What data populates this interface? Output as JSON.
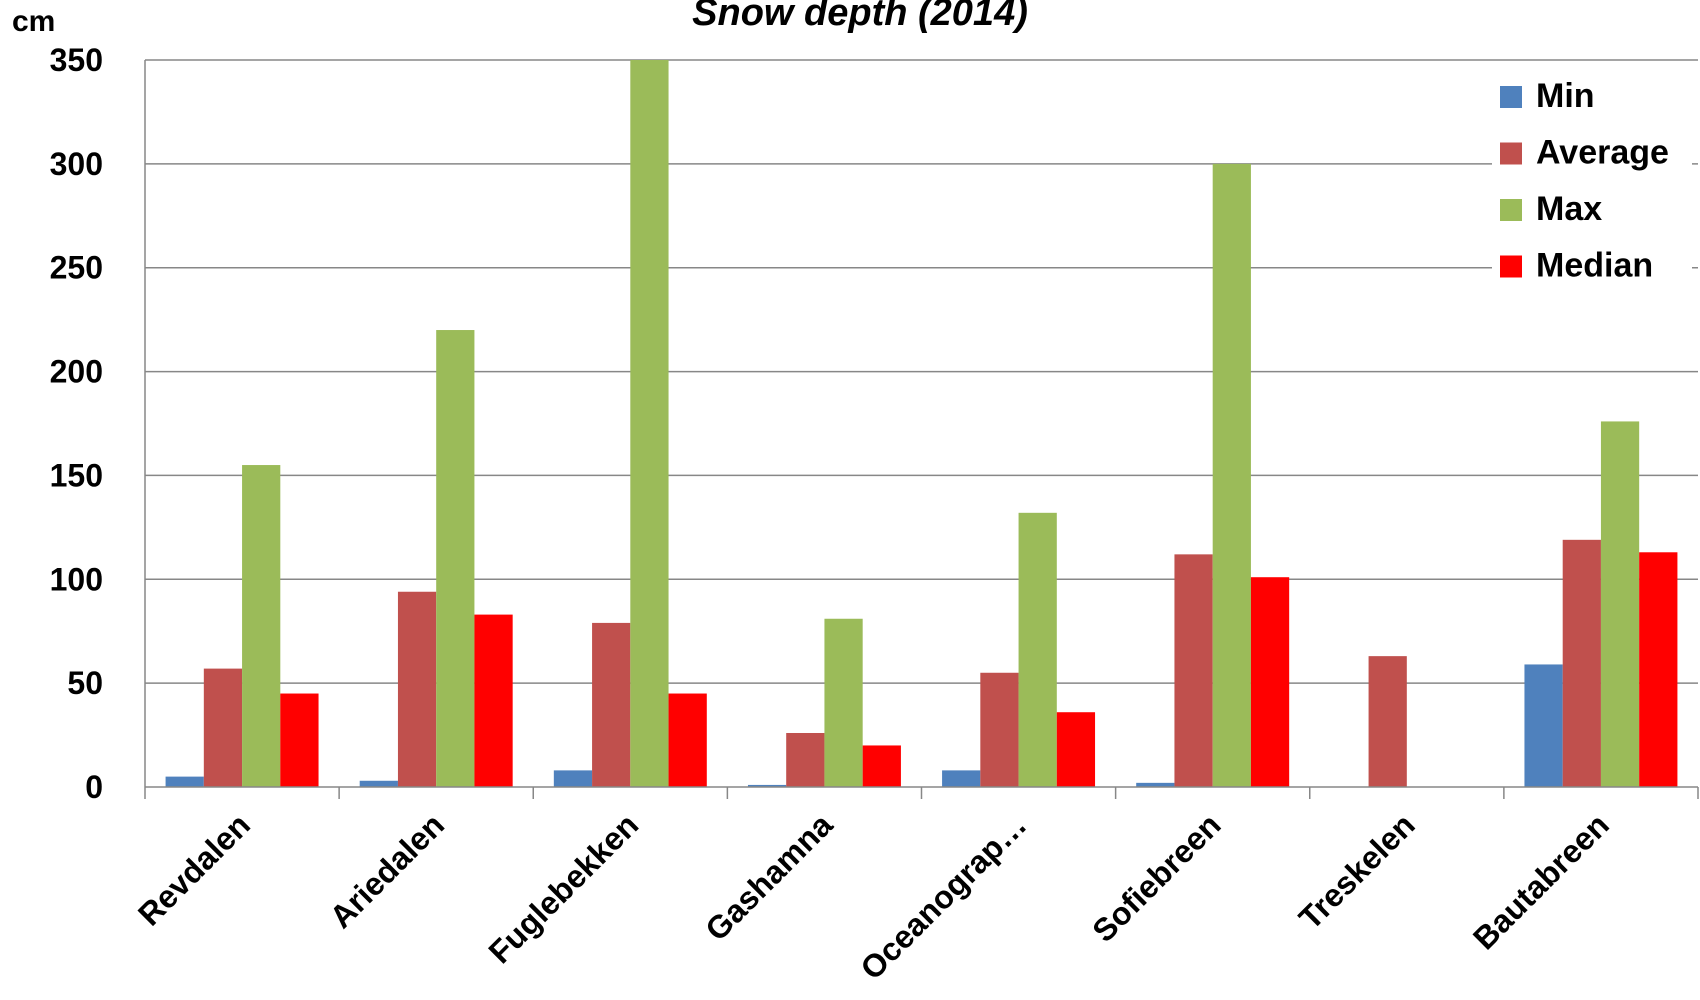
{
  "chart_data": {
    "type": "bar",
    "title": "Snow depth (2014)",
    "ylabel": "cm",
    "xlabel": "",
    "ylim": [
      0,
      350
    ],
    "yticks": [
      0,
      50,
      100,
      150,
      200,
      250,
      300,
      350
    ],
    "grid": true,
    "legend_position": "top-right",
    "categories": [
      "Revdalen",
      "Ariedalen",
      "Fuglebekken",
      "Gashamna",
      "Oceanograp…",
      "Sofiebreen",
      "Treskelen",
      "Bautabreen"
    ],
    "series": [
      {
        "name": "Min",
        "color": "#4F81BD",
        "values": [
          5,
          3,
          8,
          1,
          8,
          2,
          0,
          59
        ]
      },
      {
        "name": "Average",
        "color": "#C0504D",
        "values": [
          57,
          94,
          79,
          26,
          55,
          112,
          63,
          119
        ]
      },
      {
        "name": "Max",
        "color": "#9BBB59",
        "values": [
          155,
          220,
          350,
          81,
          132,
          300,
          0,
          176
        ]
      },
      {
        "name": "Median",
        "color": "#FF0000",
        "values": [
          45,
          83,
          45,
          20,
          36,
          101,
          0,
          113
        ]
      }
    ]
  }
}
